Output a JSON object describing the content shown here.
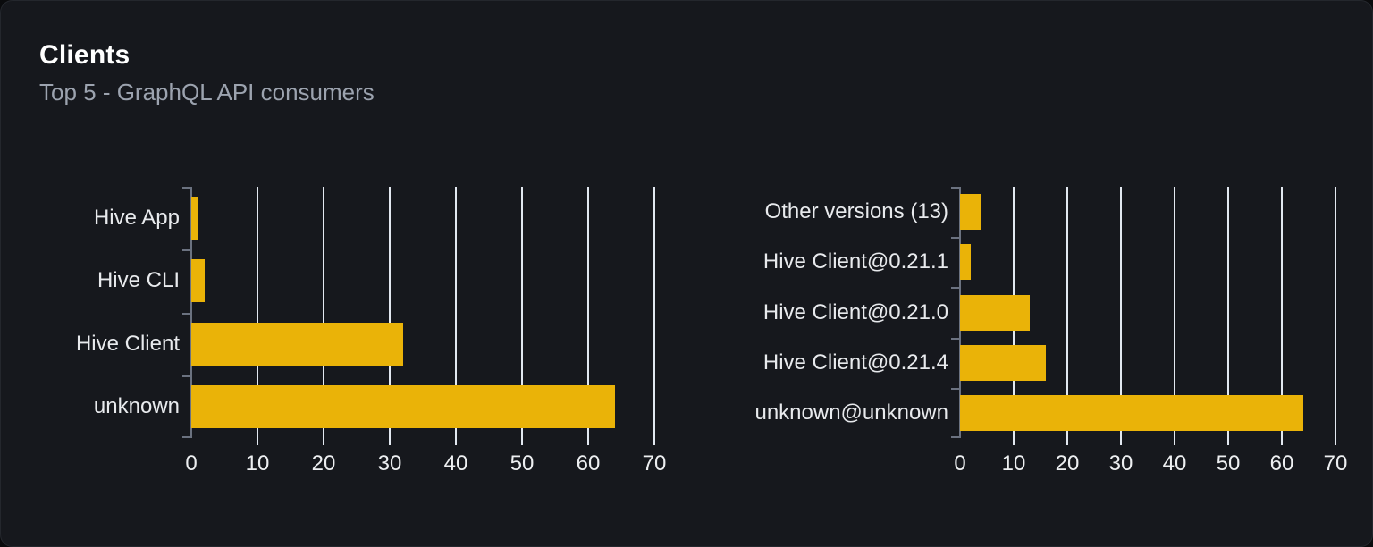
{
  "card": {
    "title": "Clients",
    "subtitle": "Top 5 - GraphQL API consumers"
  },
  "colors": {
    "bar": "#eab308",
    "gridline": "#e2e8f0",
    "axis": "#6b7280",
    "card_background": "#16181d",
    "title_text": "#ffffff",
    "subtitle_text": "#9ca3af",
    "label_text": "#e8eaed"
  },
  "chart_data": [
    {
      "type": "bar",
      "orientation": "horizontal",
      "title": "",
      "xlabel": "",
      "ylabel": "",
      "categories": [
        "Hive App",
        "Hive CLI",
        "Hive Client",
        "unknown"
      ],
      "values": [
        1,
        2,
        32,
        64
      ],
      "xlim": [
        0,
        70
      ],
      "xticks": [
        0,
        10,
        20,
        30,
        40,
        50,
        60,
        70
      ],
      "grid": true,
      "legend": "none",
      "bar_color": "#eab308"
    },
    {
      "type": "bar",
      "orientation": "horizontal",
      "title": "",
      "xlabel": "",
      "ylabel": "",
      "categories": [
        "Other versions (13)",
        "Hive Client@0.21.1",
        "Hive Client@0.21.0",
        "Hive Client@0.21.4",
        "unknown@unknown"
      ],
      "values": [
        4,
        2,
        13,
        16,
        64
      ],
      "xlim": [
        0,
        70
      ],
      "xticks": [
        0,
        10,
        20,
        30,
        40,
        50,
        60,
        70
      ],
      "grid": true,
      "legend": "none",
      "bar_color": "#eab308"
    }
  ]
}
